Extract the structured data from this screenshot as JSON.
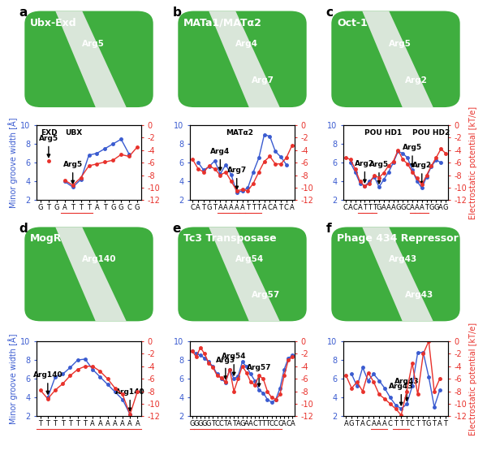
{
  "chart_data": [
    {
      "type": "line",
      "label": "a",
      "image_title": "Ubx-Exd",
      "image_labels": [
        "Arg5"
      ],
      "y_label": "Minor groove width [Å]",
      "categories": [
        "G",
        "T",
        "G",
        "A",
        "T",
        "T",
        "T",
        "A",
        "T",
        "G",
        "G",
        "C",
        "G"
      ],
      "underline": [
        3,
        4,
        5,
        6
      ],
      "domain_labels": [
        {
          "text": "EXD",
          "x": 0
        },
        {
          "text": "UBX",
          "x": 3
        }
      ],
      "annotations": [
        {
          "text": "Arg5",
          "x": 1,
          "y": 6.2
        },
        {
          "text": "Arg5",
          "x": 4,
          "y": 3.4
        }
      ],
      "ylim": [
        2,
        10
      ],
      "yticks": [
        2,
        4,
        6,
        8,
        10
      ],
      "y2lim": [
        -12,
        0
      ],
      "y2ticks": [
        -12,
        -10,
        -8,
        -6,
        -4,
        -2,
        0
      ],
      "series": [
        {
          "color": "#3a5bd0",
          "marker": "o",
          "values": [
            null,
            null,
            null,
            4.0,
            3.4,
            4.2,
            6.8,
            7.0,
            7.5,
            8.0,
            8.5,
            6.9,
            null
          ]
        },
        {
          "color": "#e8312b",
          "marker": "o",
          "axis": "y2",
          "values": [
            null,
            -5.7,
            null,
            -8.8,
            -9.6,
            -8.4,
            -6.5,
            -6.2,
            -5.9,
            -5.6,
            -4.7,
            -5.0,
            -3.5
          ]
        }
      ]
    },
    {
      "type": "line",
      "label": "b",
      "image_title": "MATa1/MATα2",
      "image_labels": [
        "Arg4",
        "Arg7"
      ],
      "categories": [
        "C",
        "A",
        "T",
        "G",
        "T",
        "A",
        "A",
        "A",
        "A",
        "A",
        "T",
        "T",
        "T",
        "A",
        "C",
        "A",
        "T",
        "C",
        "A"
      ],
      "underline": [
        5,
        6,
        7,
        8,
        9,
        10,
        11,
        12
      ],
      "domain_labels": [
        {
          "text": "MATα2",
          "x": 6
        }
      ],
      "annotations": [
        {
          "text": "Arg4",
          "x": 5,
          "y": 4.8
        },
        {
          "text": "Arg7",
          "x": 8,
          "y": 2.8
        }
      ],
      "ylim": [
        2,
        10
      ],
      "yticks": [
        2,
        4,
        6,
        8,
        10
      ],
      "y2lim": [
        -12,
        0
      ],
      "y2ticks": [
        -12,
        -10,
        -8,
        -6,
        -4,
        -2,
        0
      ],
      "series": [
        {
          "color": "#3a5bd0",
          "marker": "o",
          "values": [
            null,
            6.0,
            5.2,
            5.6,
            6.2,
            4.8,
            5.8,
            4.7,
            2.8,
            3.0,
            3.3,
            5.0,
            6.5,
            9.0,
            8.8,
            7.2,
            6.6,
            5.8,
            null
          ]
        },
        {
          "color": "#e8312b",
          "marker": "o",
          "axis": "y2",
          "values": [
            -5.5,
            -7.0,
            -7.5,
            -6.5,
            -7.0,
            -8.0,
            -7.5,
            -9.0,
            -10.5,
            -10.3,
            -10.5,
            -9.3,
            -7.5,
            -5.8,
            -5.0,
            -6.2,
            -6.2,
            -5.2,
            -3.3
          ]
        }
      ]
    },
    {
      "type": "line",
      "label": "c",
      "image_title": "Oct-1",
      "image_labels": [
        "Arg5",
        "Arg2"
      ],
      "y2_label": "Electrostatic potential [kT/e]",
      "categories": [
        "C",
        "A",
        "C",
        "A",
        "T",
        "T",
        "T",
        "G",
        "A",
        "A",
        "A",
        "G",
        "G",
        "C",
        "A",
        "A",
        "A",
        "T",
        "G",
        "G",
        "A",
        "G"
      ],
      "underline": [
        3,
        4,
        5,
        6,
        14,
        15,
        16,
        17
      ],
      "domain_labels": [
        {
          "text": "POU HD1",
          "x": 4
        },
        {
          "text": "POU HD2",
          "x": 14
        }
      ],
      "annotations": [
        {
          "text": "Arg2",
          "x": 4,
          "y": 3.5
        },
        {
          "text": "Arg5",
          "x": 7,
          "y": 3.4
        },
        {
          "text": "Arg5",
          "x": 14,
          "y": 5.2
        },
        {
          "text": "Arg2",
          "x": 16,
          "y": 3.3
        }
      ],
      "ylim": [
        2,
        10
      ],
      "yticks": [
        2,
        4,
        6,
        8,
        10
      ],
      "y2lim": [
        -12,
        0
      ],
      "y2ticks": [
        -12,
        -10,
        -8,
        -6,
        -4,
        -2,
        0
      ],
      "series": [
        {
          "color": "#3a5bd0",
          "marker": "o",
          "values": [
            null,
            6.0,
            5.0,
            3.8,
            3.5,
            4.0,
            4.5,
            3.4,
            4.2,
            5.0,
            6.0,
            7.2,
            7.0,
            6.5,
            5.2,
            4.0,
            3.3,
            4.5,
            5.6,
            6.3,
            6.0,
            null
          ]
        },
        {
          "color": "#e8312b",
          "marker": "o",
          "axis": "y2",
          "values": [
            -5.2,
            -5.5,
            -7.0,
            -9.0,
            -9.8,
            -9.3,
            -8.0,
            -8.4,
            -7.6,
            -6.5,
            -5.8,
            -4.0,
            -5.5,
            -6.2,
            -7.5,
            -8.5,
            -9.5,
            -8.0,
            -6.5,
            -5.2,
            -3.8,
            -4.5
          ]
        }
      ]
    },
    {
      "type": "line",
      "label": "d",
      "image_title": "MogR",
      "image_labels": [
        "Arg140"
      ],
      "y_label": "Minor groove width [Å]",
      "categories": [
        "T",
        "T",
        "T",
        "T",
        "T",
        "T",
        "T",
        "A",
        "A",
        "A",
        "A",
        "A",
        "A",
        "A"
      ],
      "underline": [
        0,
        1,
        2,
        3,
        4,
        5,
        6,
        7,
        8,
        9,
        10,
        11,
        12,
        13
      ],
      "domain_labels": [],
      "annotations": [
        {
          "text": "Arg140",
          "x": 1,
          "y": 4.0
        },
        {
          "text": "Arg140",
          "x": 12,
          "y": 2.2
        }
      ],
      "ylim": [
        2,
        10
      ],
      "yticks": [
        2,
        4,
        6,
        8,
        10
      ],
      "y2lim": [
        -12,
        0
      ],
      "y2ticks": [
        -12,
        -10,
        -8,
        -6,
        -4,
        -2,
        0
      ],
      "series": [
        {
          "color": "#3a5bd0",
          "marker": "o",
          "values": [
            null,
            4.0,
            6.2,
            6.5,
            7.2,
            8.0,
            8.1,
            7.0,
            6.2,
            5.4,
            4.6,
            3.8,
            2.2,
            null
          ]
        },
        {
          "color": "#e8312b",
          "marker": "o",
          "axis": "y2",
          "values": [
            -7.8,
            -9.2,
            -7.8,
            -6.8,
            -5.5,
            -4.5,
            -4.0,
            -4.0,
            -4.8,
            -6.0,
            -7.5,
            -8.5,
            -11.7,
            -8.0
          ]
        }
      ]
    },
    {
      "type": "line",
      "label": "e",
      "image_title": "Tc3 Transposase",
      "image_labels": [
        "Arg54",
        "Arg57"
      ],
      "categories": [
        "G",
        "G",
        "G",
        "G",
        "G",
        "T",
        "C",
        "C",
        "T",
        "A",
        "T",
        "A",
        "G",
        "A",
        "A",
        "C",
        "T",
        "T",
        "T",
        "C",
        "C",
        "C",
        "A",
        "C",
        "A"
      ],
      "underline": [
        0,
        1,
        2,
        3,
        4,
        5,
        6,
        7,
        8,
        9,
        10,
        11,
        12,
        13,
        14,
        15,
        16,
        17,
        18,
        19,
        20,
        21
      ],
      "domain_labels": [],
      "annotations": [
        {
          "text": "Arg3",
          "x": 8,
          "y": 5.6
        },
        {
          "text": "Arg54",
          "x": 10,
          "y": 6.0
        },
        {
          "text": "Arg57",
          "x": 16,
          "y": 4.8
        }
      ],
      "ylim": [
        2,
        10
      ],
      "yticks": [
        2,
        4,
        6,
        8,
        10
      ],
      "y2lim": [
        -12,
        0
      ],
      "y2ticks": [
        -12,
        -10,
        -8,
        -6,
        -4,
        -2,
        0
      ],
      "series": [
        {
          "color": "#3a5bd0",
          "marker": "o",
          "values": [
            9.0,
            8.7,
            8.5,
            8.2,
            7.8,
            7.3,
            6.5,
            6.0,
            5.6,
            7.0,
            6.0,
            6.3,
            7.8,
            7.3,
            6.5,
            5.8,
            4.8,
            4.5,
            3.8,
            3.5,
            3.8,
            5.0,
            7.0,
            8.2,
            8.5
          ]
        },
        {
          "color": "#e8312b",
          "marker": "o",
          "axis": "y2",
          "values": [
            -1.5,
            -2.5,
            -1.0,
            -2.0,
            -3.5,
            -4.2,
            -5.5,
            -5.8,
            -6.5,
            -4.5,
            -8.0,
            -6.0,
            -4.0,
            -5.0,
            -6.5,
            -7.0,
            -5.5,
            -6.0,
            -8.0,
            -9.0,
            -9.3,
            -8.5,
            -5.5,
            -3.0,
            -2.5
          ]
        }
      ]
    },
    {
      "type": "line",
      "label": "f",
      "image_title": "Phage 434 Repressor",
      "image_labels": [
        "Arg43",
        "Arg43"
      ],
      "y2_label": "Electrostatic potential [kT/e]",
      "categories": [
        "A",
        "G",
        "T",
        "A",
        "C",
        "A",
        "A",
        "A",
        "C",
        "T",
        "T",
        "T",
        "C",
        "T",
        "T",
        "G",
        "T",
        "A",
        "T"
      ],
      "underline": [
        5,
        6,
        7,
        9,
        10,
        11
      ],
      "domain_labels": [],
      "annotations": [
        {
          "text": "Arg43",
          "x": 10,
          "y": 2.8
        },
        {
          "text": "Arg43",
          "x": 11,
          "y": 3.3
        }
      ],
      "ylim": [
        2,
        10
      ],
      "yticks": [
        2,
        4,
        6,
        8,
        10
      ],
      "y2lim": [
        -12,
        0
      ],
      "y2ticks": [
        -12,
        -10,
        -8,
        -6,
        -4,
        -2,
        0
      ],
      "series": [
        {
          "color": "#3a5bd0",
          "marker": "o",
          "values": [
            null,
            6.5,
            5.2,
            7.2,
            5.8,
            6.5,
            5.8,
            5.0,
            4.0,
            3.2,
            2.8,
            3.3,
            5.2,
            8.8,
            8.8,
            6.2,
            3.0,
            4.8,
            null
          ]
        },
        {
          "color": "#e8312b",
          "marker": "o",
          "axis": "y2",
          "values": [
            -5.5,
            -7.5,
            -6.5,
            -8.0,
            -5.0,
            -6.5,
            -8.5,
            -9.2,
            -10.0,
            -10.8,
            -11.8,
            -8.0,
            -3.5,
            -8.5,
            -2.0,
            0.0,
            -8.0,
            -6.0,
            null
          ]
        }
      ]
    }
  ]
}
